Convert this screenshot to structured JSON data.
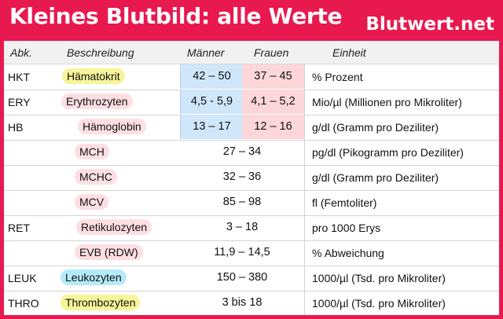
{
  "title": "Kleines Blutbild: alle Werte",
  "brand": "Blutwert.net",
  "headers": {
    "abbr": "Abk.",
    "desc": "Beschreibung",
    "men": "Männer",
    "women": "Frauen",
    "unit": "Einheit"
  },
  "colors": {
    "background": "#e8194f",
    "men_cell": "#cfe6fb",
    "women_cell": "#fcd6d9",
    "highlight_yellow": "#f6f59a",
    "highlight_pink": "#fddfe2",
    "highlight_cyan": "#b5ebf8"
  },
  "rows": [
    {
      "abbr": "HKT",
      "desc": "Hämatokrit",
      "men": "42 – 50",
      "women": "37 – 45",
      "unit": "% Prozent"
    },
    {
      "abbr": "ERY",
      "desc": "Erythrozyten",
      "men": "4,5 - 5,9",
      "women": "4,1 – 5,2",
      "unit": "Mio/µl (Millionen pro Mikroliter)"
    },
    {
      "abbr": "HB",
      "desc": "Hämoglobin",
      "men": "13 – 17",
      "women": "12 – 16",
      "unit": "g/dl (Gramm pro Deziliter)"
    },
    {
      "abbr": "",
      "desc": "MCH",
      "both": "27 – 34",
      "unit": "pg/dl (Pikogramm pro Deziliter)"
    },
    {
      "abbr": "",
      "desc": "MCHC",
      "both": "32 – 36",
      "unit": "g/dl (Gramm pro Deziliter)"
    },
    {
      "abbr": "",
      "desc": "MCV",
      "both": "85 – 98",
      "unit": "fl (Femtoliter)"
    },
    {
      "abbr": "RET",
      "desc": "Retikulozyten",
      "both": "3 – 18",
      "unit": "pro 1000 Erys"
    },
    {
      "abbr": "",
      "desc": "EVB (RDW)",
      "both": "11,9 – 14,5",
      "unit": "% Abweichung"
    },
    {
      "abbr": "LEUK",
      "desc": "Leukozyten",
      "both": "150 – 380",
      "unit": "1000/µl (Tsd. pro Mikroliter)"
    },
    {
      "abbr": "THRO",
      "desc": "Thrombozyten",
      "both": "3 bis 18",
      "unit": "1000/µl (Tsd. pro Mikroliter)"
    }
  ]
}
